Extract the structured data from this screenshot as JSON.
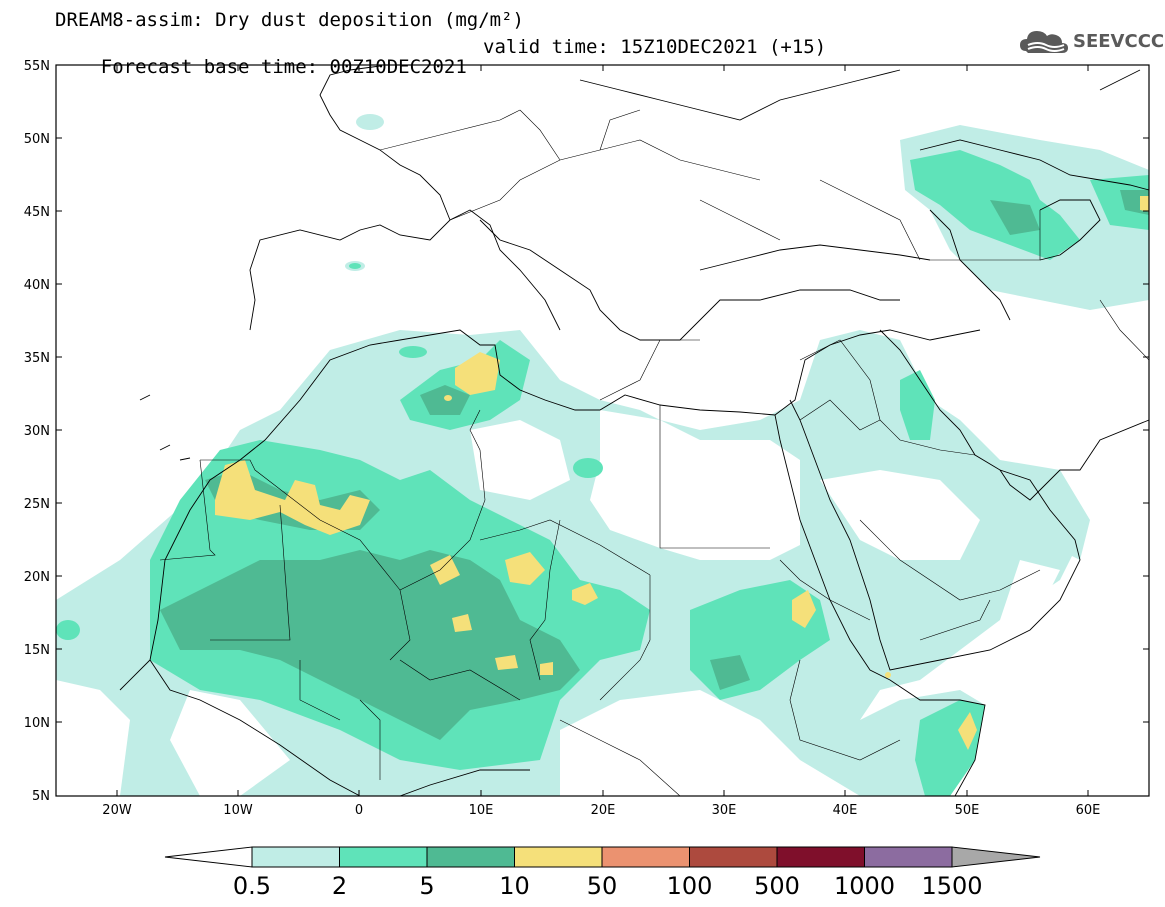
{
  "header": {
    "title_line1": "DREAM8-assim: Dry dust deposition (mg/m²)",
    "base_time": "Forecast base time: 00Z10DEC2021",
    "valid_time": "valid time: 15Z10DEC2021 (+15)"
  },
  "logo": {
    "text": "SEEVCCC",
    "icon": "cloud-logo-icon"
  },
  "axes": {
    "lat_labels": [
      "55N",
      "50N",
      "45N",
      "40N",
      "35N",
      "30N",
      "25N",
      "20N",
      "15N",
      "10N",
      "5N"
    ],
    "lon_labels": [
      "20W",
      "10W",
      "0",
      "10E",
      "20E",
      "30E",
      "40E",
      "50E",
      "60E"
    ],
    "lat_range": [
      5,
      55
    ],
    "lon_range": [
      -25,
      65
    ]
  },
  "colorbar": {
    "levels": [
      "0.5",
      "2",
      "5",
      "10",
      "50",
      "100",
      "500",
      "1000",
      "1500"
    ],
    "colors": [
      "#c0ede6",
      "#5fe3b9",
      "#4fba93",
      "#f5e07a",
      "#eb9270",
      "#ad4a3e",
      "#7f0f2b",
      "#8c6ca0"
    ],
    "low_extend_color": "#ffffff",
    "high_extend_color": "#a8a8a8"
  }
}
